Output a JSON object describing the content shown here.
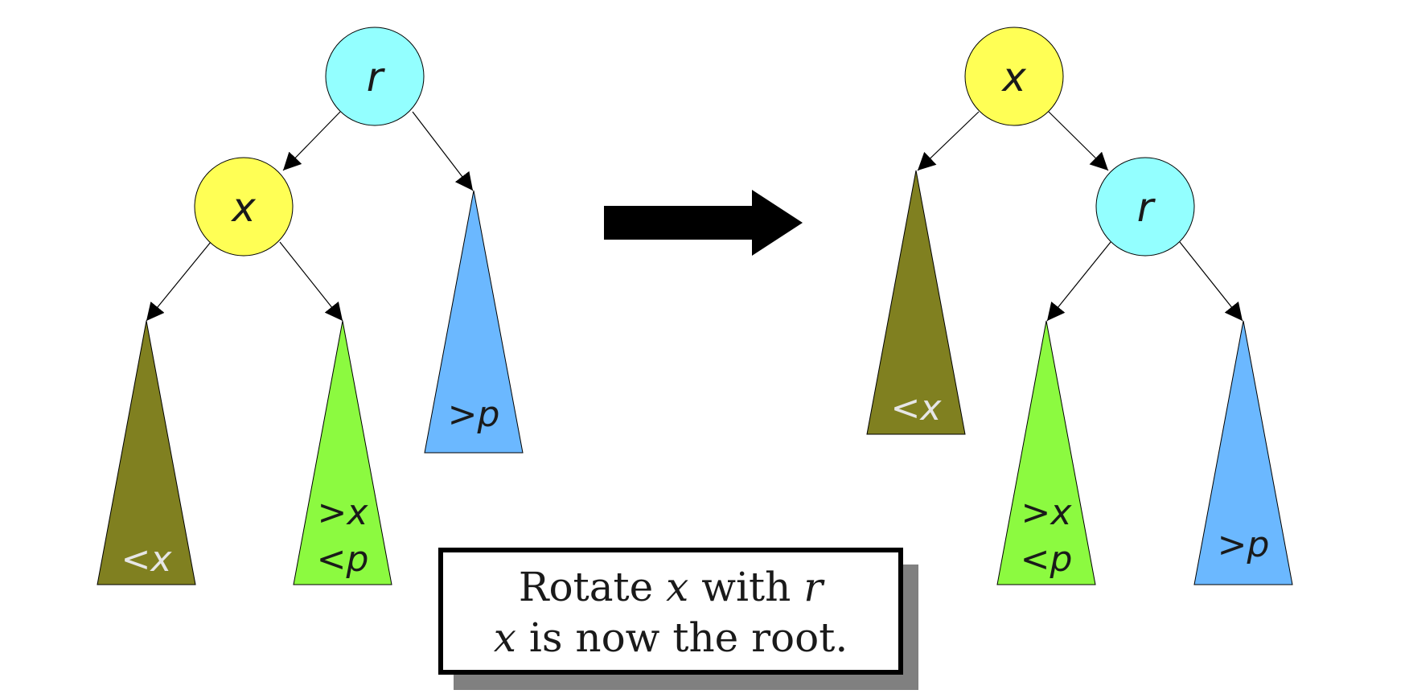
{
  "colors": {
    "node_r": "#93ffff",
    "node_x": "#ffff55",
    "subtree_lt_x": "#808020",
    "subtree_mid": "#8cfa40",
    "subtree_gt_p": "#6bb8ff",
    "arrow": "#000000",
    "caption_shadow": "#808080"
  },
  "before": {
    "root": {
      "label": "r"
    },
    "child": {
      "label": "x"
    },
    "subtree_lt_x": {
      "op": "<",
      "var": "x"
    },
    "subtree_mid": {
      "op1": ">",
      "var1": "x",
      "op2": "<",
      "var2": "p"
    },
    "subtree_gt_p": {
      "op": ">",
      "var": "p"
    }
  },
  "after": {
    "root": {
      "label": "x"
    },
    "child": {
      "label": "r"
    },
    "subtree_lt_x": {
      "op": "<",
      "var": "x"
    },
    "subtree_mid": {
      "op1": ">",
      "var1": "x",
      "op2": "<",
      "var2": "p"
    },
    "subtree_gt_p": {
      "op": ">",
      "var": "p"
    }
  },
  "caption": {
    "line1_word": "Rotate ",
    "line1_var1": "x",
    "line1_mid": " with ",
    "line1_var2": "r",
    "line2_var": "x",
    "line2_text": " is now the root."
  }
}
